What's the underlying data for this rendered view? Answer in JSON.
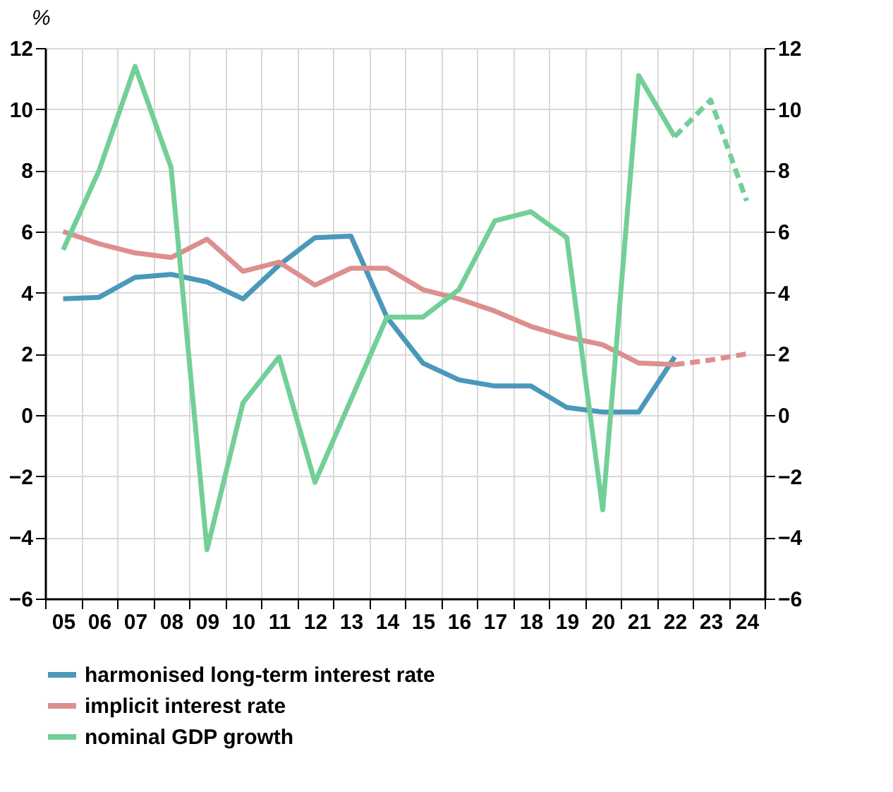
{
  "chart_data": {
    "type": "line",
    "ylabel": "%",
    "categories": [
      "05",
      "06",
      "07",
      "08",
      "09",
      "10",
      "11",
      "12",
      "13",
      "14",
      "15",
      "16",
      "17",
      "18",
      "19",
      "20",
      "21",
      "22",
      "23",
      "24"
    ],
    "series": [
      {
        "name": "harmonised long-term interest rate",
        "color": "#4a98ba",
        "values": [
          3.8,
          3.85,
          4.5,
          4.6,
          4.35,
          3.8,
          4.9,
          5.8,
          5.85,
          3.2,
          1.7,
          1.15,
          0.95,
          0.95,
          0.25,
          0.1,
          0.1,
          1.9,
          null,
          null
        ]
      },
      {
        "name": "implicit interest rate",
        "color": "#dc8f8e",
        "values": [
          6.0,
          5.6,
          5.3,
          5.15,
          5.75,
          4.7,
          5.0,
          4.25,
          4.8,
          4.8,
          4.1,
          3.8,
          3.4,
          2.9,
          2.55,
          2.3,
          1.7,
          1.65,
          null,
          null
        ]
      },
      {
        "name": "nominal GDP growth",
        "color": "#73cf98",
        "values": [
          5.4,
          8.0,
          11.4,
          8.1,
          -4.4,
          0.4,
          1.9,
          -2.2,
          0.5,
          3.2,
          3.2,
          4.1,
          6.35,
          6.65,
          5.8,
          -3.1,
          11.1,
          9.1,
          null,
          null
        ]
      },
      {
        "color": "#dc8f8e",
        "line_style": "dashed",
        "values": [
          null,
          null,
          null,
          null,
          null,
          null,
          null,
          null,
          null,
          null,
          null,
          null,
          null,
          null,
          null,
          null,
          null,
          1.65,
          1.8,
          2.0
        ]
      },
      {
        "color": "#73cf98",
        "line_style": "dashed",
        "values": [
          null,
          null,
          null,
          null,
          null,
          null,
          null,
          null,
          null,
          null,
          null,
          null,
          null,
          null,
          null,
          null,
          null,
          9.1,
          10.3,
          7.0
        ]
      }
    ],
    "ylim": [
      -6,
      12
    ],
    "yticks": [
      -6,
      -4,
      -2,
      0,
      2,
      4,
      6,
      8,
      10,
      12
    ],
    "y2lim": [
      -6,
      12
    ],
    "y2ticks": [
      -6,
      -4,
      -2,
      0,
      2,
      4,
      6,
      8,
      10,
      12
    ],
    "grid": true,
    "legend": "bottom",
    "line_style": "solid",
    "marker": "none"
  }
}
